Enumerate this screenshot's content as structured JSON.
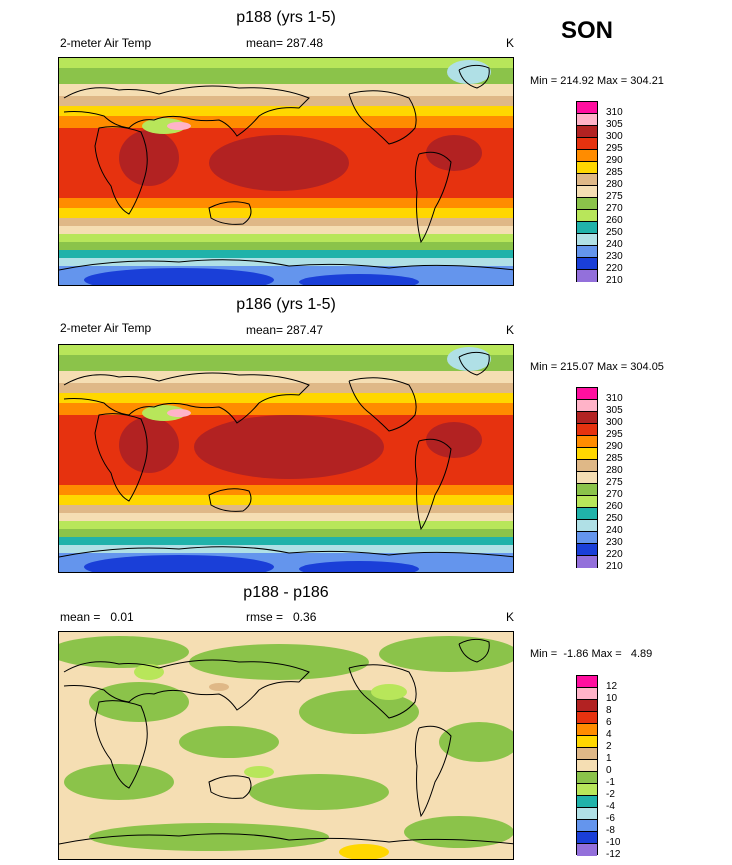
{
  "season": "SON",
  "panels": [
    {
      "title": "p188 (yrs 1-5)",
      "left_label": "2-meter Air Temp",
      "center_label": "mean= 287.48",
      "units": "K",
      "minmax": "Min = 214.92 Max = 304.21",
      "levels": [
        "310",
        "305",
        "300",
        "295",
        "290",
        "285",
        "280",
        "275",
        "270",
        "260",
        "250",
        "240",
        "230",
        "220",
        "210"
      ]
    },
    {
      "title": "p186 (yrs 1-5)",
      "left_label": "2-meter Air Temp",
      "center_label": "mean= 287.47",
      "units": "K",
      "minmax": "Min = 215.07 Max = 304.05",
      "levels": [
        "310",
        "305",
        "300",
        "295",
        "290",
        "285",
        "280",
        "275",
        "270",
        "260",
        "250",
        "240",
        "230",
        "220",
        "210"
      ]
    },
    {
      "title": "p188 - p186",
      "left_label": "mean =   0.01",
      "center_label": "rmse =   0.36",
      "units": "K",
      "minmax": "Min =  -1.86 Max =   4.89",
      "levels": [
        "12",
        "10",
        "8",
        "6",
        "4",
        "2",
        "1",
        "0",
        "-1",
        "-2",
        "-4",
        "-6",
        "-8",
        "-10",
        "-12"
      ]
    }
  ],
  "colors": {
    "abs_scale": [
      "#ff0f9f",
      "#ffb3c8",
      "#b22222",
      "#e6320f",
      "#ff8c00",
      "#ffd700",
      "#dfb887",
      "#f5deb3",
      "#8bc34a",
      "#b8e65a",
      "#20b2aa",
      "#b0e0e6",
      "#6495ed",
      "#1a3fd8",
      "#9370db"
    ],
    "diff_scale": [
      "#ff0f9f",
      "#ffb3c8",
      "#b22222",
      "#e6320f",
      "#ff8c00",
      "#ffd700",
      "#dfb887",
      "#f5deb3",
      "#8bc34a",
      "#b8e65a",
      "#20b2aa",
      "#b0e0e6",
      "#6495ed",
      "#1a3fd8",
      "#9370db"
    ]
  }
}
